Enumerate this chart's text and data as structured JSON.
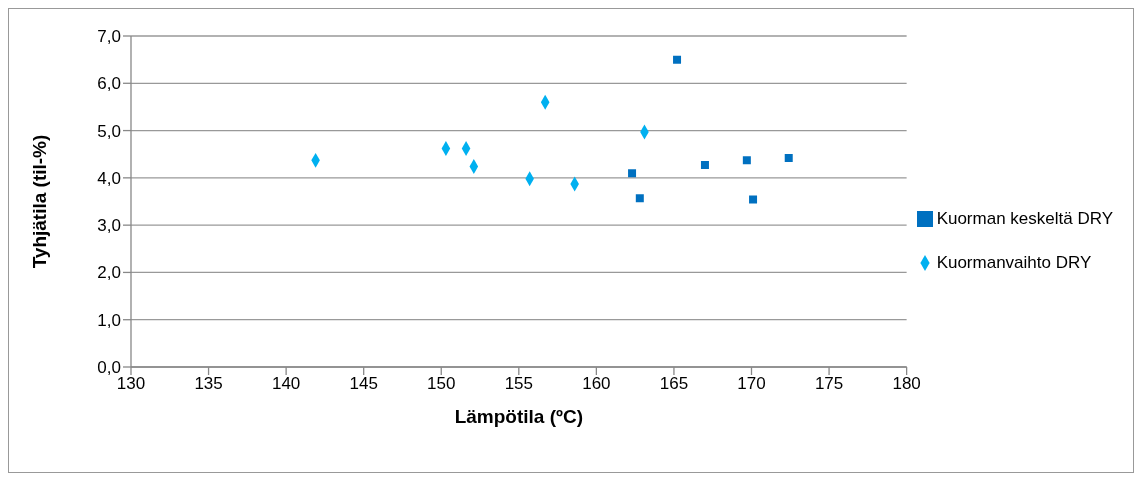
{
  "chart_data": {
    "type": "scatter",
    "xlabel": "Lämpötila (ºC)",
    "ylabel": "Tyhjätila (til-%)",
    "xlim": [
      130,
      180
    ],
    "xticks": [
      130,
      135,
      140,
      145,
      150,
      155,
      160,
      165,
      170,
      175,
      180
    ],
    "ylim": [
      0,
      7
    ],
    "yticks": [
      {
        "value": 0,
        "label": "0,0"
      },
      {
        "value": 1,
        "label": "1,0"
      },
      {
        "value": 2,
        "label": "2,0"
      },
      {
        "value": 3,
        "label": "3,0"
      },
      {
        "value": 4,
        "label": "4,0"
      },
      {
        "value": 5,
        "label": "5,0"
      },
      {
        "value": 6,
        "label": "6,0"
      },
      {
        "value": 7,
        "label": "7,0"
      }
    ],
    "grid": "y",
    "legend": "right",
    "series": [
      {
        "name": "Kuormanvaihto DRY",
        "color": "#00b0f0",
        "marker": "diamond",
        "x": [
          141.9,
          150.3,
          151.6,
          152.1,
          155.7,
          156.7,
          158.6,
          163.1
        ],
        "values": [
          4.37,
          4.62,
          4.62,
          4.24,
          3.98,
          5.6,
          3.87,
          4.97
        ]
      },
      {
        "name": "Kuorman keskeltä DRY",
        "color": "#0070c0",
        "marker": "square",
        "x": [
          165.2,
          162.3,
          162.8,
          167.0,
          169.7,
          172.4,
          170.1
        ],
        "values": [
          6.5,
          4.1,
          3.57,
          4.27,
          4.37,
          4.42,
          3.54
        ]
      }
    ]
  }
}
